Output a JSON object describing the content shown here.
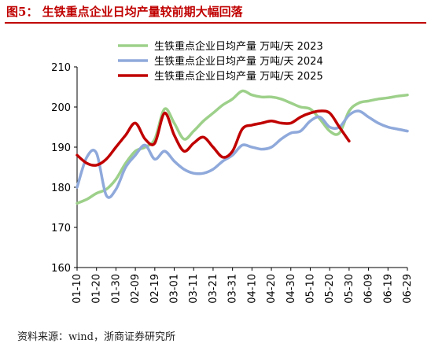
{
  "title": "图5：  生铁重点企业日均产量较前期大幅回落",
  "source": "资料来源：wind，浙商证券研究所",
  "chart_data": {
    "type": "line",
    "title": "图5：  生铁重点企业日均产量较前期大幅回落",
    "xlabel": "",
    "ylabel": "",
    "ylim": [
      160,
      210
    ],
    "yticks": [
      160,
      170,
      180,
      190,
      200,
      210
    ],
    "categories": [
      "01-10",
      "01-20",
      "01-30",
      "02-09",
      "02-19",
      "03-01",
      "03-11",
      "03-21",
      "03-31",
      "04-10",
      "04-20",
      "04-30",
      "05-10",
      "05-20",
      "05-30",
      "06-09",
      "06-19",
      "06-29"
    ],
    "legend_position": "top-right",
    "grid": false,
    "series": [
      {
        "name": "生铁重点企业日均产量  万吨/天  2023",
        "color": "#9dd08a",
        "x": [
          0,
          0.5,
          1.0,
          1.5,
          2.0,
          2.5,
          3.0,
          3.5,
          4.0,
          4.5,
          5.0,
          5.5,
          6.0,
          6.5,
          7.0,
          7.5,
          8.0,
          8.5,
          9.0,
          9.5,
          10.0,
          10.5,
          11.0,
          11.5,
          12.0,
          12.5,
          13.0,
          13.5,
          14.0,
          14.5,
          15.0,
          15.5,
          16.0,
          16.5,
          17.0
        ],
        "values": [
          176,
          177,
          178.5,
          179.5,
          182,
          186,
          189,
          190,
          192,
          199.5,
          196,
          192,
          194,
          196.5,
          198.5,
          200.5,
          202,
          204,
          203,
          202.5,
          202.5,
          202,
          201,
          200,
          199.5,
          197,
          194,
          193.5,
          199,
          201,
          201.5,
          202,
          202.3,
          202.7,
          203
        ]
      },
      {
        "name": "生铁重点企业日均产量  万吨/天  2024",
        "color": "#8fa9db",
        "x": [
          0,
          0.5,
          1.0,
          1.5,
          2.0,
          2.5,
          3.0,
          3.5,
          4.0,
          4.5,
          5.0,
          5.5,
          6.0,
          6.5,
          7.0,
          7.5,
          8.0,
          8.5,
          9.0,
          9.5,
          10.0,
          10.5,
          11.0,
          11.5,
          12.0,
          12.5,
          13.0,
          13.5,
          14.0,
          14.5,
          15.0,
          15.5,
          16.0,
          16.5,
          17.0
        ],
        "values": [
          180,
          187.5,
          188.5,
          178,
          179.5,
          185,
          188,
          190.5,
          187,
          189,
          186.5,
          184.5,
          183.5,
          183.5,
          184.5,
          186.5,
          188,
          190.5,
          190,
          189.5,
          190,
          192,
          193.5,
          194,
          196.5,
          197.5,
          195,
          195,
          198,
          199,
          197.5,
          196,
          195,
          194.5,
          194
        ]
      },
      {
        "name": "生铁重点企业日均产量  万吨/天  2025",
        "color": "#c00000",
        "x": [
          0,
          0.5,
          1.0,
          1.5,
          2.0,
          2.5,
          3.0,
          3.5,
          4.0,
          4.5,
          5.0,
          5.5,
          6.0,
          6.5,
          7.0,
          7.5,
          8.0,
          8.5,
          9.0,
          9.5,
          10.0,
          10.5,
          11.0,
          11.5,
          12.0,
          12.5,
          13.0,
          13.5,
          14.0
        ],
        "values": [
          188,
          186,
          185.5,
          187,
          190,
          193,
          196,
          192,
          191,
          198.5,
          193,
          189,
          191,
          192.5,
          190,
          187.5,
          189,
          194.5,
          195.5,
          196,
          196.5,
          196,
          196,
          197.5,
          198.5,
          199,
          198.5,
          195,
          191.5
        ]
      }
    ]
  }
}
